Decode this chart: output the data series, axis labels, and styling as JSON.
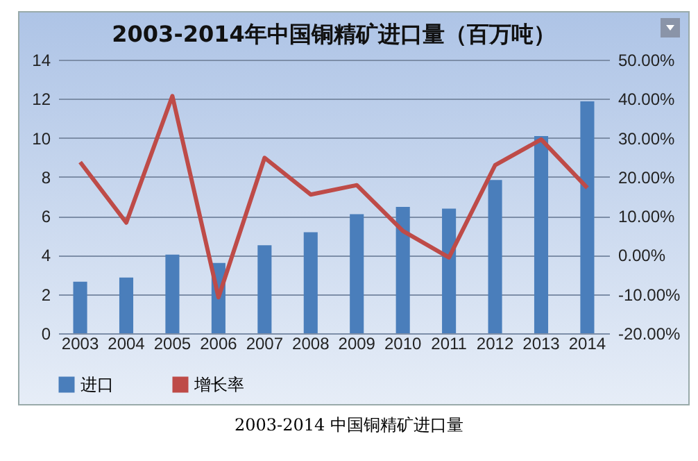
{
  "chart_data": {
    "type": "bar",
    "title": "2003-2014年中国铜精矿进口量（百万吨）",
    "categories": [
      "2003",
      "2004",
      "2005",
      "2006",
      "2007",
      "2008",
      "2009",
      "2010",
      "2011",
      "2012",
      "2013",
      "2014"
    ],
    "series": [
      {
        "name": "进口",
        "color": "#4a7ebb",
        "values": [
          2.64,
          2.85,
          4.02,
          3.6,
          4.5,
          5.17,
          6.09,
          6.47,
          6.38,
          7.84,
          10.09,
          11.87
        ]
      },
      {
        "name": "增长率",
        "type": "line",
        "axis": "y2",
        "color": "#be4b48",
        "values": [
          23.8,
          8.3,
          40.7,
          -10.8,
          24.9,
          15.5,
          17.9,
          6.2,
          -0.6,
          23.0,
          29.6,
          17.2
        ]
      }
    ],
    "ylim": [
      0,
      14
    ],
    "yticks": [
      0,
      2,
      4,
      6,
      8,
      10,
      12,
      14
    ],
    "y2lim": [
      -20,
      50
    ],
    "y2ticks": [
      {
        "value": -20,
        "label": "-20.00%"
      },
      {
        "value": -10,
        "label": "-10.00%"
      },
      {
        "value": 0,
        "label": "0.00%"
      },
      {
        "value": 10,
        "label": "10.00%"
      },
      {
        "value": 20,
        "label": "20.00%"
      },
      {
        "value": 30,
        "label": "30.00%"
      },
      {
        "value": 40,
        "label": "40.00%"
      },
      {
        "value": 50,
        "label": "50.00%"
      }
    ],
    "grid": "y",
    "legend": "bottom",
    "marker": "none",
    "line_style": "solid",
    "annotations": [
      "2003-2014 中国铜精矿进口量"
    ]
  }
}
